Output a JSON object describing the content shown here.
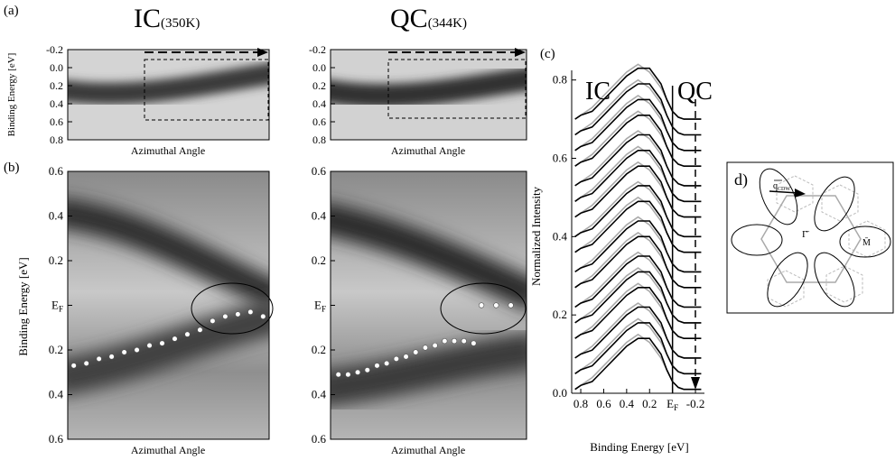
{
  "chart_data": [
    {
      "type": "heatmap",
      "panel_label": "(a)",
      "title": "IC",
      "title_note": "(350K)",
      "ylabel": "Binding Energy [eV]",
      "xlabel": "Azimuthal Angle",
      "ylim": [
        -0.2,
        0.8
      ],
      "yticks": [
        -0.2,
        {
          "value": 0,
          "label": "0.0"
        },
        0.2,
        0.4,
        0.6,
        0.8
      ]
    },
    {
      "type": "heatmap",
      "title": "QC",
      "title_note": "(344K)",
      "xlabel": "Azimuthal Angle",
      "ylim": [
        -0.2,
        0.8
      ],
      "yticks": [
        -0.2,
        {
          "value": 0,
          "label": "0.0"
        },
        0.2,
        0.4,
        0.6,
        0.8
      ]
    },
    {
      "type": "heatmap",
      "panel_label": "(b)",
      "ylabel": "Binding Energy [eV]",
      "xlabel": "Azimuthal Angle",
      "ylim": [
        -0.6,
        0.6
      ],
      "yticks": [
        {
          "value": -0.6,
          "label": "0.6"
        },
        {
          "value": -0.4,
          "label": "0.4"
        },
        {
          "value": -0.2,
          "label": "0.2"
        },
        {
          "value": 0,
          "label": "E",
          "subscript": "F"
        },
        0.2,
        0.4,
        0.6
      ],
      "series": [
        {
          "color": "#ffffff",
          "values": [
            0.27,
            0.26,
            0.24,
            0.23,
            0.21,
            0.2,
            0.18,
            0.17,
            0.15,
            0.13,
            0.11,
            0.07,
            0.05,
            0.04,
            0.03,
            0.05
          ]
        }
      ]
    },
    {
      "type": "heatmap",
      "xlabel": "Azimuthal Angle",
      "ylim": [
        -0.6,
        0.6
      ],
      "yticks": [
        {
          "value": -0.6,
          "label": "0.6"
        },
        {
          "value": -0.4,
          "label": "0.4"
        },
        {
          "value": -0.2,
          "label": "0.2"
        },
        {
          "value": 0,
          "label": "E",
          "subscript": "F"
        },
        0.2,
        0.4,
        0.6
      ],
      "series": [
        {
          "color": "#ffffff",
          "values": [
            0.31,
            0.31,
            0.3,
            0.29,
            0.27,
            0.26,
            0.24,
            0.23,
            0.21,
            0.19,
            0.18,
            0.16,
            0.16,
            0.16,
            0.17
          ]
        },
        {
          "color": "#ffffff",
          "values": [
            0,
            0,
            0
          ]
        }
      ]
    },
    {
      "type": "line",
      "panel_label": "(c)",
      "xlabel": "Binding Energy [eV]",
      "ylabel": "Normalized Intensity",
      "xlim": [
        0.85,
        -0.25
      ],
      "xticks": [
        0.8,
        0.6,
        0.4,
        0.2,
        {
          "value": 0,
          "label": "E",
          "subscript": "F"
        },
        -0.2
      ],
      "ylim": [
        0,
        0.82
      ],
      "yticks": [
        {
          "value": 0,
          "label": "0.0"
        },
        0.2,
        0.4,
        0.6,
        0.8
      ],
      "x": [
        0.85,
        0.8,
        0.7,
        0.6,
        0.5,
        0.4,
        0.3,
        0.2,
        0.1,
        0.05,
        0,
        -0.05,
        -0.1,
        -0.2,
        -0.25
      ],
      "offsets": [
        0.7,
        0.66,
        0.62,
        0.58,
        0.53,
        0.49,
        0.45,
        0.4,
        0.36,
        0.31,
        0.27,
        0.22,
        0.18,
        0.14,
        0.09,
        0.05,
        0.01
      ],
      "series": [
        {
          "name": "IC",
          "color": "#aaaaaa",
          "values": [
            0,
            0.01,
            0.03,
            0.06,
            0.09,
            0.12,
            0.14,
            0.12,
            0.08,
            0.05,
            0.02,
            0.005,
            0,
            0,
            0
          ]
        },
        {
          "name": "QC",
          "color": "#000000",
          "values": [
            0,
            0.01,
            0.02,
            0.05,
            0.08,
            0.11,
            0.13,
            0.13,
            0.09,
            0.05,
            0.02,
            0.005,
            0,
            0,
            0
          ]
        }
      ]
    }
  ],
  "diagram": {
    "label": "d)",
    "q": "q",
    "q_sub": "CDW",
    "gamma": "Γ̄",
    "m": "M̄"
  }
}
